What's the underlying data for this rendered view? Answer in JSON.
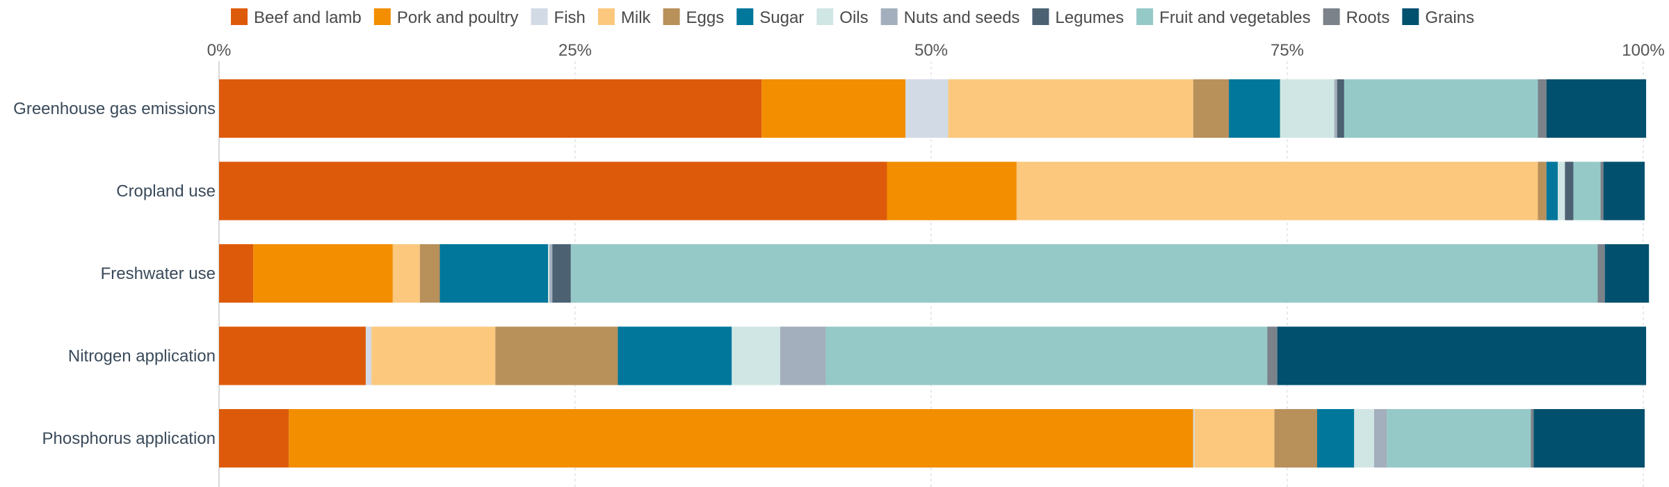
{
  "chart_data": {
    "type": "bar",
    "orientation": "horizontal",
    "stacked": true,
    "normalized_percent": true,
    "title": "",
    "xlabel": "",
    "ylabel": "",
    "xlim": [
      0,
      100
    ],
    "x_ticks": [
      "0%",
      "25%",
      "50%",
      "75%",
      "100%"
    ],
    "grid": true,
    "legend_position": "top",
    "categories": [
      "Greenhouse gas emissions",
      "Cropland use",
      "Freshwater use",
      "Nitrogen application",
      "Phosphorus application"
    ],
    "series": [
      {
        "name": "Beef and lamb",
        "color": "#dd5a0b",
        "values": [
          38.1,
          46.9,
          2.4,
          10.3,
          4.9
        ]
      },
      {
        "name": "Pork and poultry",
        "color": "#f28e00",
        "values": [
          10.1,
          9.1,
          9.8,
          0.0,
          63.5
        ]
      },
      {
        "name": "Fish",
        "color": "#d2dae5",
        "values": [
          3.0,
          0.0,
          0.0,
          0.4,
          0.1
        ]
      },
      {
        "name": "Milk",
        "color": "#fbc87e",
        "values": [
          17.2,
          36.6,
          1.9,
          8.7,
          5.6
        ]
      },
      {
        "name": "Eggs",
        "color": "#b8905a",
        "values": [
          2.5,
          0.6,
          1.4,
          8.6,
          3.0
        ]
      },
      {
        "name": "Sugar",
        "color": "#00779b",
        "values": [
          3.6,
          0.8,
          7.6,
          8.0,
          2.6
        ]
      },
      {
        "name": "Oils",
        "color": "#d0e6e4",
        "values": [
          3.8,
          0.5,
          0.1,
          3.4,
          1.4
        ]
      },
      {
        "name": "Nuts and seeds",
        "color": "#a3afbc",
        "values": [
          0.2,
          0.0,
          0.2,
          3.2,
          0.9
        ]
      },
      {
        "name": "Legumes",
        "color": "#4c6273",
        "values": [
          0.5,
          0.6,
          1.3,
          0.0,
          0.0
        ]
      },
      {
        "name": "Fruit and vegetables",
        "color": "#95c9c8",
        "values": [
          13.6,
          1.9,
          72.1,
          31.0,
          10.1
        ]
      },
      {
        "name": "Roots",
        "color": "#7b8289",
        "values": [
          0.6,
          0.2,
          0.5,
          0.7,
          0.2
        ]
      },
      {
        "name": "Grains",
        "color": "#00506e",
        "values": [
          7.0,
          2.9,
          3.1,
          25.9,
          7.8
        ]
      }
    ]
  }
}
